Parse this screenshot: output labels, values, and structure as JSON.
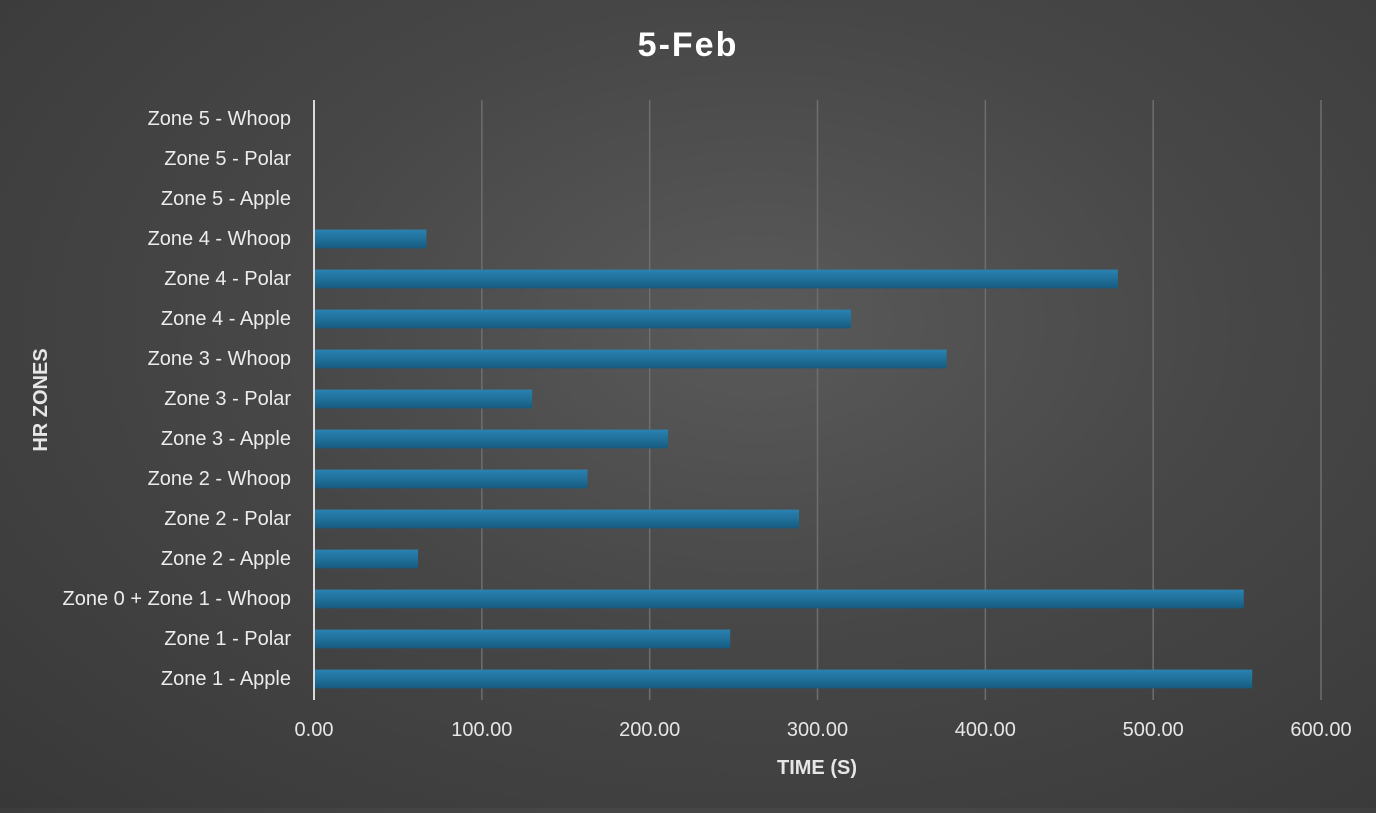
{
  "chart_data": {
    "type": "bar",
    "orientation": "horizontal",
    "title": "5-Feb",
    "xlabel": "TIME (S)",
    "ylabel": "HR ZONES",
    "xlim": [
      0,
      600
    ],
    "xticks": [
      "0.00",
      "100.00",
      "200.00",
      "300.00",
      "400.00",
      "500.00",
      "600.00"
    ],
    "grid": true,
    "legend": "none",
    "bar_color": "#1f6e98",
    "categories": [
      "Zone 5 - Whoop",
      "Zone 5 - Polar",
      "Zone 5 - Apple",
      "Zone 4 - Whoop",
      "Zone 4 - Polar",
      "Zone 4 - Apple",
      "Zone 3 - Whoop",
      "Zone 3 - Polar",
      "Zone 3 - Apple",
      "Zone 2 - Whoop",
      "Zone 2 - Polar",
      "Zone 2 - Apple",
      "Zone 0 + Zone 1 - Whoop",
      "Zone 1 - Polar",
      "Zone 1 - Apple"
    ],
    "values": [
      0,
      0,
      0,
      67,
      479,
      320,
      377,
      130,
      211,
      163,
      289,
      62,
      554,
      248,
      559
    ]
  }
}
